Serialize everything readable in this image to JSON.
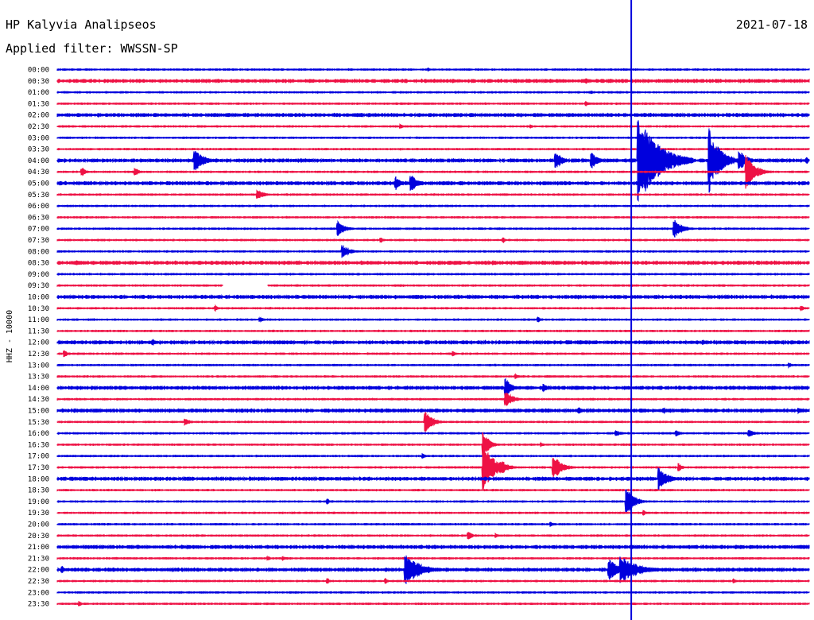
{
  "header": {
    "station": "HP Kalyvia Analipseos",
    "date": "2021-07-18",
    "filter_label": "Applied filter: WWSSN-SP"
  },
  "chart_data": {
    "type": "line",
    "title": "HP Kalyvia Analipseos",
    "subtitle": "Applied filter: WWSSN-SP",
    "ylabel": "HHZ - 10000",
    "row_labels": [
      "00:00",
      "00:30",
      "01:00",
      "01:30",
      "02:00",
      "02:30",
      "03:00",
      "03:30",
      "04:00",
      "04:30",
      "05:00",
      "05:30",
      "06:00",
      "06:30",
      "07:00",
      "07:30",
      "08:00",
      "08:30",
      "09:00",
      "09:30",
      "10:00",
      "10:30",
      "11:00",
      "11:30",
      "12:00",
      "12:30",
      "13:00",
      "13:30",
      "14:00",
      "14:30",
      "15:00",
      "15:30",
      "16:00",
      "16:30",
      "17:00",
      "17:30",
      "18:00",
      "18:30",
      "19:00",
      "19:30",
      "20:00",
      "20:30",
      "21:00",
      "21:30",
      "22:00",
      "22:30",
      "23:00",
      "23:30"
    ],
    "row_colors": [
      "#0000dd",
      "#ee1144"
    ],
    "trace_minutes": 30,
    "noise_by_row": [
      1,
      2,
      1,
      1,
      2,
      1,
      1,
      1,
      2,
      1,
      2,
      1,
      1,
      1,
      1,
      1,
      1,
      2,
      1,
      1,
      2,
      1,
      1,
      1,
      2,
      1,
      1,
      1,
      2,
      1,
      2,
      1,
      1,
      1,
      1,
      1,
      2,
      1,
      1,
      1,
      1,
      1,
      2,
      1,
      2,
      1,
      1,
      1
    ],
    "gaps": [
      {
        "row": 19,
        "start_min": 6.6,
        "end_min": 8.4
      }
    ],
    "events": [
      {
        "row": 0,
        "min": 14.8,
        "amp": 2,
        "dur": 0.3
      },
      {
        "row": 1,
        "min": 21.1,
        "amp": 3,
        "dur": 0.4
      },
      {
        "row": 2,
        "min": 21.3,
        "amp": 2,
        "dur": 0.3
      },
      {
        "row": 3,
        "min": 21.1,
        "amp": 3,
        "dur": 0.3
      },
      {
        "row": 5,
        "min": 13.7,
        "amp": 3,
        "dur": 0.3
      },
      {
        "row": 5,
        "min": 18.9,
        "amp": 2,
        "dur": 0.2
      },
      {
        "row": 8,
        "min": 5.5,
        "amp": 14,
        "dur": 1.0
      },
      {
        "row": 8,
        "min": 19.9,
        "amp": 11,
        "dur": 0.7
      },
      {
        "row": 8,
        "min": 21.3,
        "amp": 11,
        "dur": 0.7
      },
      {
        "row": 8,
        "min": 23.2,
        "amp": 60,
        "dur": 2.2
      },
      {
        "row": 8,
        "min": 24.6,
        "amp": 5,
        "dur": 0.6
      },
      {
        "row": 8,
        "min": 26.0,
        "amp": 42,
        "dur": 1.2
      },
      {
        "row": 8,
        "min": 27.2,
        "amp": 14,
        "dur": 0.8
      },
      {
        "row": 8,
        "min": 29.9,
        "amp": 4,
        "dur": 0.3
      },
      {
        "row": 9,
        "min": 1.0,
        "amp": 5,
        "dur": 0.5
      },
      {
        "row": 9,
        "min": 3.1,
        "amp": 5,
        "dur": 0.5
      },
      {
        "row": 9,
        "min": 27.5,
        "amp": 22,
        "dur": 1.0
      },
      {
        "row": 10,
        "min": 13.5,
        "amp": 9,
        "dur": 0.6
      },
      {
        "row": 10,
        "min": 14.1,
        "amp": 11,
        "dur": 0.8
      },
      {
        "row": 11,
        "min": 8.0,
        "amp": 6,
        "dur": 0.7
      },
      {
        "row": 14,
        "min": 11.2,
        "amp": 10,
        "dur": 0.7
      },
      {
        "row": 14,
        "min": 24.6,
        "amp": 14,
        "dur": 0.8
      },
      {
        "row": 15,
        "min": 12.9,
        "amp": 4,
        "dur": 0.3
      },
      {
        "row": 15,
        "min": 17.8,
        "amp": 3,
        "dur": 0.3
      },
      {
        "row": 16,
        "min": 11.4,
        "amp": 8,
        "dur": 0.8
      },
      {
        "row": 17,
        "min": 0.8,
        "amp": 3,
        "dur": 0.3
      },
      {
        "row": 17,
        "min": 17.4,
        "amp": 3,
        "dur": 0.3
      },
      {
        "row": 21,
        "min": 6.3,
        "amp": 4,
        "dur": 0.3
      },
      {
        "row": 21,
        "min": 29.7,
        "amp": 3,
        "dur": 0.4
      },
      {
        "row": 22,
        "min": 8.1,
        "amp": 3,
        "dur": 0.4
      },
      {
        "row": 22,
        "min": 19.2,
        "amp": 3,
        "dur": 0.3
      },
      {
        "row": 24,
        "min": 3.8,
        "amp": 4,
        "dur": 0.6
      },
      {
        "row": 24,
        "min": 25.8,
        "amp": 3,
        "dur": 0.3
      },
      {
        "row": 25,
        "min": 0.3,
        "amp": 4,
        "dur": 0.4
      },
      {
        "row": 25,
        "min": 15.8,
        "amp": 3,
        "dur": 0.3
      },
      {
        "row": 26,
        "min": 29.2,
        "amp": 3,
        "dur": 0.3
      },
      {
        "row": 27,
        "min": 18.3,
        "amp": 3,
        "dur": 0.4
      },
      {
        "row": 28,
        "min": 17.9,
        "amp": 12,
        "dur": 0.7
      },
      {
        "row": 28,
        "min": 19.4,
        "amp": 5,
        "dur": 0.4
      },
      {
        "row": 29,
        "min": 17.9,
        "amp": 10,
        "dur": 0.8
      },
      {
        "row": 30,
        "min": 20.8,
        "amp": 4,
        "dur": 0.5
      },
      {
        "row": 30,
        "min": 24.2,
        "amp": 4,
        "dur": 0.4
      },
      {
        "row": 30,
        "min": 29.6,
        "amp": 4,
        "dur": 0.4
      },
      {
        "row": 31,
        "min": 5.1,
        "amp": 4,
        "dur": 0.6
      },
      {
        "row": 31,
        "min": 14.7,
        "amp": 14,
        "dur": 0.8
      },
      {
        "row": 32,
        "min": 22.3,
        "amp": 4,
        "dur": 0.6
      },
      {
        "row": 32,
        "min": 24.7,
        "amp": 4,
        "dur": 0.5
      },
      {
        "row": 32,
        "min": 27.6,
        "amp": 5,
        "dur": 0.7
      },
      {
        "row": 33,
        "min": 17.0,
        "amp": 18,
        "dur": 0.6
      },
      {
        "row": 33,
        "min": 19.3,
        "amp": 3,
        "dur": 0.3
      },
      {
        "row": 34,
        "min": 14.6,
        "amp": 3,
        "dur": 0.3
      },
      {
        "row": 35,
        "min": 17.0,
        "amp": 30,
        "dur": 1.2
      },
      {
        "row": 35,
        "min": 17.7,
        "amp": 10,
        "dur": 0.8
      },
      {
        "row": 35,
        "min": 19.8,
        "amp": 16,
        "dur": 0.9
      },
      {
        "row": 35,
        "min": 24.8,
        "amp": 5,
        "dur": 0.4
      },
      {
        "row": 36,
        "min": 7.7,
        "amp": 3,
        "dur": 0.3
      },
      {
        "row": 36,
        "min": 24.0,
        "amp": 14,
        "dur": 1.0
      },
      {
        "row": 38,
        "min": 10.8,
        "amp": 3,
        "dur": 0.3
      },
      {
        "row": 38,
        "min": 22.7,
        "amp": 20,
        "dur": 0.8
      },
      {
        "row": 39,
        "min": 23.4,
        "amp": 3,
        "dur": 0.3
      },
      {
        "row": 40,
        "min": 19.7,
        "amp": 3,
        "dur": 0.3
      },
      {
        "row": 41,
        "min": 16.4,
        "amp": 6,
        "dur": 0.4
      },
      {
        "row": 41,
        "min": 17.5,
        "amp": 3,
        "dur": 0.3
      },
      {
        "row": 43,
        "min": 8.4,
        "amp": 3,
        "dur": 0.3
      },
      {
        "row": 43,
        "min": 9.0,
        "amp": 3,
        "dur": 0.3
      },
      {
        "row": 44,
        "min": 0.2,
        "amp": 4,
        "dur": 0.4
      },
      {
        "row": 44,
        "min": 13.9,
        "amp": 20,
        "dur": 1.6
      },
      {
        "row": 44,
        "min": 22.0,
        "amp": 14,
        "dur": 1.2
      },
      {
        "row": 44,
        "min": 22.5,
        "amp": 18,
        "dur": 1.8
      },
      {
        "row": 45,
        "min": 10.8,
        "amp": 3,
        "dur": 0.3
      },
      {
        "row": 45,
        "min": 13.1,
        "amp": 3,
        "dur": 0.3
      },
      {
        "row": 45,
        "min": 27.0,
        "amp": 3,
        "dur": 0.3
      },
      {
        "row": 47,
        "min": 0.9,
        "amp": 3,
        "dur": 0.3
      }
    ],
    "big_event": {
      "row": 0,
      "min": 22.9
    }
  }
}
